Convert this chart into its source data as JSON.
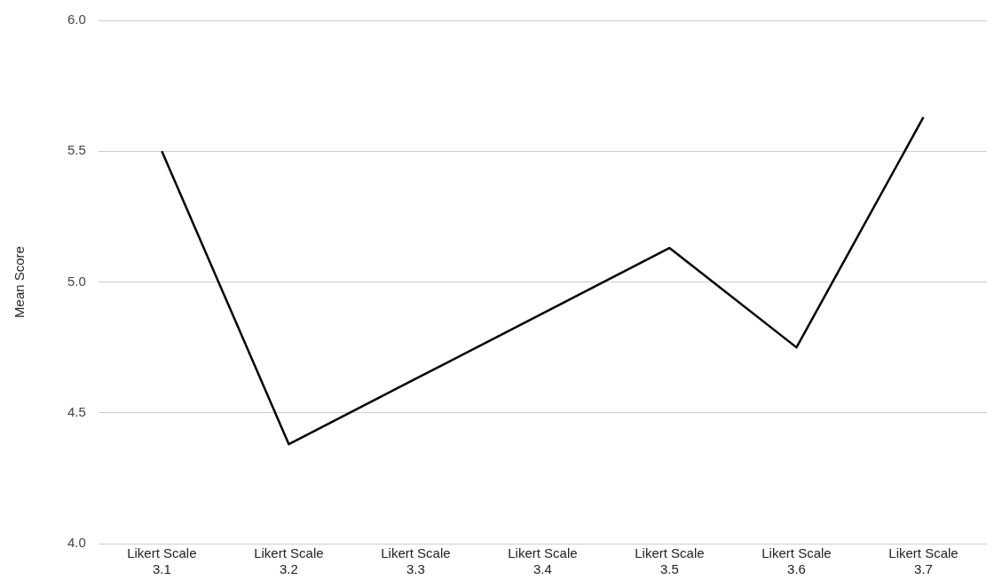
{
  "chart_data": {
    "type": "line",
    "ylabel": "Mean Score",
    "categories": [
      "Likert Scale 3.1",
      "Likert Scale 3.2",
      "Likert Scale 3.3",
      "Likert Scale 3.4",
      "Likert Scale 3.5",
      "Likert Scale 3.6",
      "Likert Scale 3.7"
    ],
    "series": [
      {
        "color": "#000000",
        "values": [
          5.5,
          4.38,
          4.63,
          4.88,
          5.13,
          4.75,
          5.63
        ]
      }
    ],
    "ylim": [
      4.0,
      6.0
    ],
    "yticks": [
      {
        "value": 4.0,
        "label": "4.0"
      },
      {
        "value": 4.5,
        "label": "4.5"
      },
      {
        "value": 5.0,
        "label": "5.0"
      },
      {
        "value": 5.5,
        "label": "5.5"
      },
      {
        "value": 6.0,
        "label": "6.0"
      }
    ],
    "grid": "y",
    "legend": false,
    "marker": "none",
    "line_style": "solid"
  }
}
